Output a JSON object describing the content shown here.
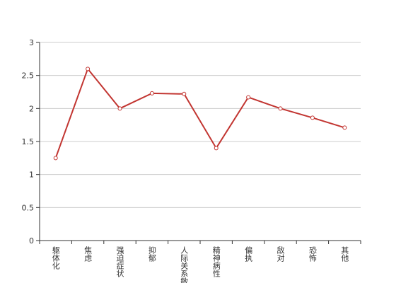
{
  "chart_data": {
    "type": "line",
    "categories": [
      "躯体化",
      "焦虑",
      "强迫症状",
      "抑郁",
      "人际关系敏感",
      "精神病性",
      "偏执",
      "敌对",
      "恐怖",
      "其他"
    ],
    "values": [
      1.25,
      2.6,
      2.0,
      2.23,
      2.22,
      1.4,
      2.17,
      2.0,
      1.86,
      1.71
    ],
    "color": "#c23531",
    "ylim": [
      0,
      3
    ],
    "yticks": [
      0,
      0.5,
      1,
      1.5,
      2,
      2.5,
      3
    ],
    "grid": true
  }
}
